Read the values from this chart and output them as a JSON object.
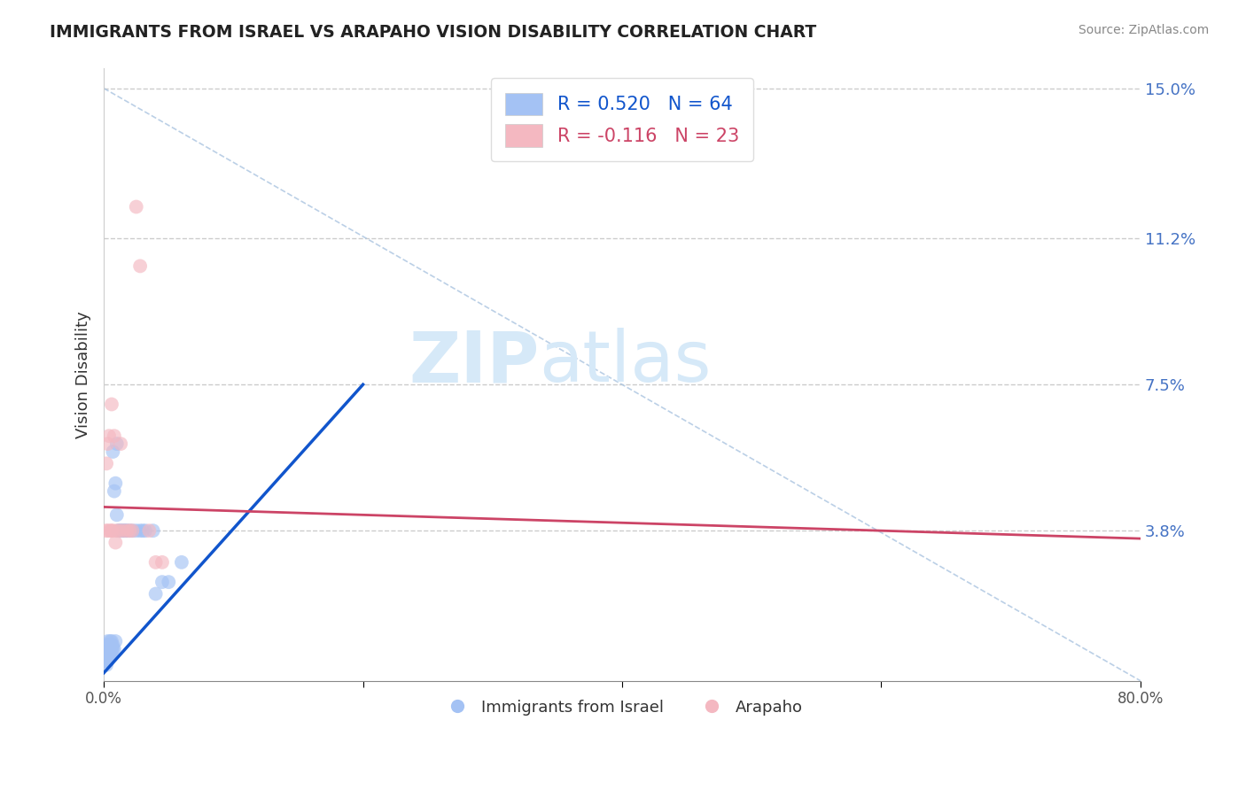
{
  "title": "IMMIGRANTS FROM ISRAEL VS ARAPAHO VISION DISABILITY CORRELATION CHART",
  "source": "Source: ZipAtlas.com",
  "ylabel": "Vision Disability",
  "yticks": [
    0.0,
    0.038,
    0.075,
    0.112,
    0.15
  ],
  "ytick_labels": [
    "",
    "3.8%",
    "7.5%",
    "11.2%",
    "15.0%"
  ],
  "xlim": [
    0.0,
    0.8
  ],
  "ylim": [
    0.0,
    0.155
  ],
  "blue_R": 0.52,
  "blue_N": 64,
  "pink_R": -0.116,
  "pink_N": 23,
  "blue_color": "#a4c2f4",
  "pink_color": "#f4b8c1",
  "blue_line_color": "#1155cc",
  "pink_line_color": "#cc4466",
  "grid_color": "#cccccc",
  "diag_color": "#aac4e0",
  "watermark_color": "#d6e9f8",
  "blue_scatter_x": [
    0.001,
    0.001,
    0.001,
    0.001,
    0.001,
    0.001,
    0.001,
    0.001,
    0.002,
    0.002,
    0.002,
    0.002,
    0.002,
    0.002,
    0.002,
    0.002,
    0.003,
    0.003,
    0.003,
    0.003,
    0.003,
    0.003,
    0.003,
    0.004,
    0.004,
    0.004,
    0.004,
    0.005,
    0.005,
    0.005,
    0.005,
    0.005,
    0.006,
    0.006,
    0.006,
    0.006,
    0.007,
    0.007,
    0.007,
    0.008,
    0.008,
    0.009,
    0.009,
    0.01,
    0.01,
    0.011,
    0.012,
    0.013,
    0.014,
    0.015,
    0.016,
    0.017,
    0.018,
    0.02,
    0.022,
    0.025,
    0.028,
    0.03,
    0.032,
    0.038,
    0.04,
    0.045,
    0.05,
    0.06
  ],
  "blue_scatter_y": [
    0.005,
    0.005,
    0.006,
    0.006,
    0.007,
    0.007,
    0.008,
    0.005,
    0.004,
    0.005,
    0.006,
    0.007,
    0.007,
    0.008,
    0.009,
    0.006,
    0.005,
    0.006,
    0.007,
    0.008,
    0.009,
    0.01,
    0.007,
    0.006,
    0.007,
    0.008,
    0.009,
    0.006,
    0.007,
    0.008,
    0.009,
    0.01,
    0.007,
    0.008,
    0.009,
    0.01,
    0.008,
    0.009,
    0.058,
    0.008,
    0.048,
    0.01,
    0.05,
    0.042,
    0.06,
    0.038,
    0.038,
    0.038,
    0.038,
    0.038,
    0.038,
    0.038,
    0.038,
    0.038,
    0.038,
    0.038,
    0.038,
    0.038,
    0.038,
    0.038,
    0.022,
    0.025,
    0.025,
    0.03
  ],
  "pink_scatter_x": [
    0.002,
    0.002,
    0.003,
    0.003,
    0.004,
    0.005,
    0.006,
    0.006,
    0.007,
    0.008,
    0.009,
    0.01,
    0.012,
    0.013,
    0.015,
    0.018,
    0.02,
    0.022,
    0.025,
    0.028,
    0.035,
    0.04,
    0.045
  ],
  "pink_scatter_y": [
    0.038,
    0.055,
    0.038,
    0.06,
    0.062,
    0.038,
    0.07,
    0.038,
    0.038,
    0.062,
    0.035,
    0.038,
    0.038,
    0.06,
    0.038,
    0.038,
    0.038,
    0.038,
    0.12,
    0.105,
    0.038,
    0.03,
    0.03
  ],
  "blue_trend_x": [
    0.0,
    0.2
  ],
  "blue_trend_y": [
    0.002,
    0.075
  ],
  "pink_trend_x": [
    0.0,
    0.8
  ],
  "pink_trend_y": [
    0.044,
    0.036
  ]
}
